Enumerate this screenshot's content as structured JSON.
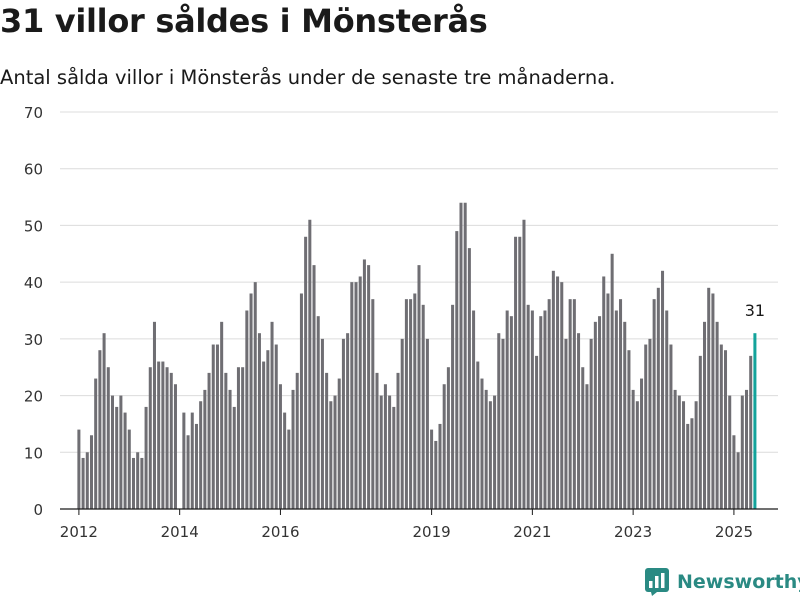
{
  "page": {
    "title": "31 villor såldes i Mönsterås",
    "subtitle": "Antal sålda villor i Mönsterås under de senaste tre månaderna."
  },
  "brand": {
    "name": "Newsworthy",
    "icon": "bar-chart-icon",
    "color": "#2a8a83"
  },
  "colors": {
    "bar": "#6f6e73",
    "highlight": "#13a39b",
    "grid": "#dcdcdc",
    "axis": "#1a1a1a",
    "text": "#333333"
  },
  "chart_data": {
    "type": "bar",
    "title": "31 villor såldes i Mönsterås",
    "subtitle": "Antal sålda villor i Mönsterås under de senaste tre månaderna.",
    "xlabel": "",
    "ylabel": "",
    "ylim": [
      0,
      70
    ],
    "yticks": [
      0,
      10,
      20,
      30,
      40,
      50,
      60,
      70
    ],
    "xlim": [
      "2011-09",
      "2025-12"
    ],
    "xticks": [
      {
        "month": "2012-01",
        "label": "2012"
      },
      {
        "month": "2014-01",
        "label": "2014"
      },
      {
        "month": "2016-01",
        "label": "2016"
      },
      {
        "month": "2019-01",
        "label": "2019"
      },
      {
        "month": "2021-01",
        "label": "2021"
      },
      {
        "month": "2023-01",
        "label": "2023"
      },
      {
        "month": "2025-01",
        "label": "2025"
      }
    ],
    "grid": true,
    "legend": "none",
    "start_month": "2012-01",
    "values": [
      14,
      9,
      10,
      13,
      23,
      28,
      31,
      25,
      20,
      18,
      20,
      17,
      14,
      9,
      10,
      9,
      18,
      25,
      33,
      26,
      26,
      25,
      24,
      22,
      null,
      17,
      13,
      17,
      15,
      19,
      21,
      24,
      29,
      29,
      33,
      24,
      21,
      18,
      25,
      25,
      35,
      38,
      40,
      31,
      26,
      28,
      33,
      29,
      22,
      17,
      14,
      21,
      24,
      38,
      48,
      51,
      43,
      34,
      30,
      24,
      19,
      20,
      23,
      30,
      31,
      40,
      40,
      41,
      44,
      43,
      37,
      24,
      20,
      22,
      20,
      18,
      24,
      30,
      37,
      37,
      38,
      43,
      36,
      30,
      14,
      12,
      15,
      22,
      25,
      36,
      49,
      54,
      54,
      46,
      35,
      26,
      23,
      21,
      19,
      20,
      31,
      30,
      35,
      34,
      48,
      48,
      51,
      36,
      35,
      27,
      34,
      35,
      37,
      42,
      41,
      40,
      30,
      37,
      37,
      31,
      25,
      22,
      30,
      33,
      34,
      41,
      38,
      45,
      35,
      37,
      33,
      28,
      21,
      19,
      23,
      29,
      30,
      37,
      39,
      42,
      35,
      29,
      21,
      20,
      19,
      15,
      16,
      19,
      27,
      33,
      39,
      38,
      33,
      29,
      28,
      20,
      13,
      10,
      20,
      21,
      27,
      31
    ],
    "highlight": {
      "month": "2025-06",
      "value": 31,
      "label": "31"
    }
  }
}
